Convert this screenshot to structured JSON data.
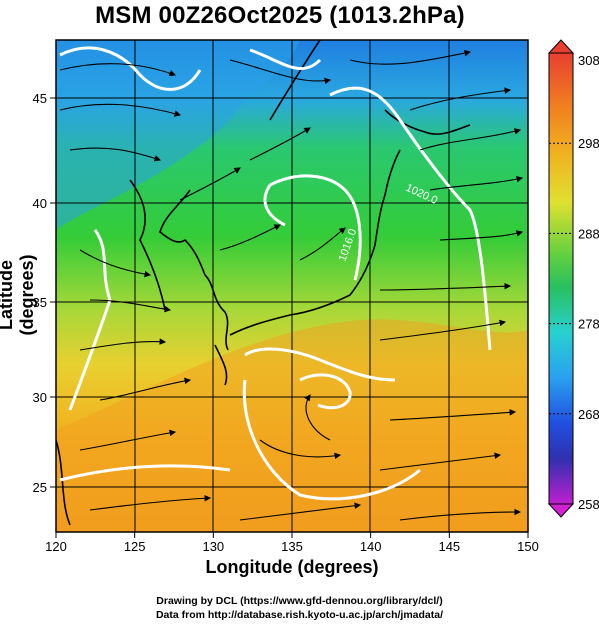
{
  "title": "MSM 00Z26Oct2025 (1013.2hPa)",
  "axes": {
    "x_label": "Longitude (degrees)",
    "y_label": "Latitude  (degrees)",
    "x_ticks": [
      "120",
      "125",
      "130",
      "135",
      "140",
      "145",
      "150"
    ],
    "y_ticks": [
      "45",
      "40",
      "35",
      "30",
      "25"
    ]
  },
  "colorbar": {
    "tick_labels": [
      "308",
      "298",
      "288",
      "278",
      "268",
      "258"
    ],
    "range": [
      258,
      308
    ],
    "colors": [
      "#d020d0",
      "#3030c0",
      "#1e60ff",
      "#2cc8d8",
      "#28c850",
      "#d8e030",
      "#f0a020",
      "#e84030"
    ]
  },
  "contour_labels": [
    "1020.0",
    "1016.0"
  ],
  "credits": {
    "line1": "Drawing by DCL (https://www.gfd-dennou.org/library/dcl/)",
    "line2": "Data from http://database.rish.kyoto-u.ac.jp/arch/jmadata/"
  }
}
